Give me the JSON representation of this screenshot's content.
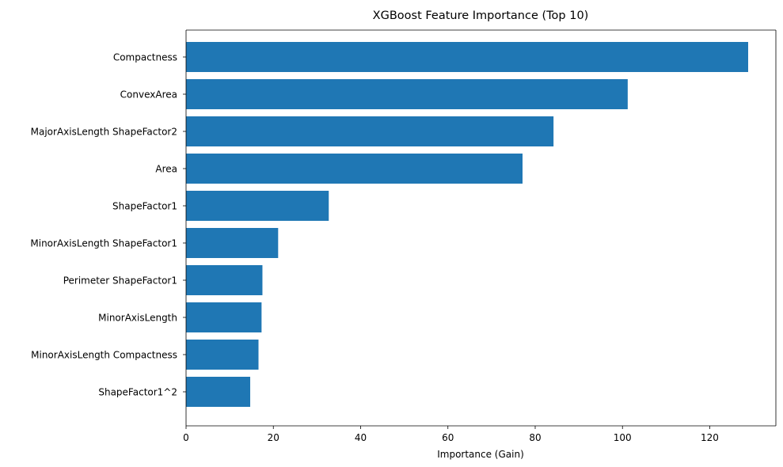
{
  "chart_data": {
    "type": "bar",
    "orientation": "horizontal",
    "title": "XGBoost Feature Importance (Top 10)",
    "xlabel": "Importance (Gain)",
    "ylabel": "",
    "xlim": [
      0,
      130
    ],
    "xticks": [
      0,
      20,
      40,
      60,
      80,
      100,
      120
    ],
    "grid": false,
    "bar_color": "#1f77b4",
    "categories": [
      "Compactness",
      "ConvexArea",
      "MajorAxisLength ShapeFactor2",
      "Area",
      "ShapeFactor1",
      "MinorAxisLength ShapeFactor1",
      "Perimeter ShapeFactor1",
      "MinorAxisLength",
      "MinorAxisLength Compactness",
      "ShapeFactor1^2"
    ],
    "values": [
      128.8,
      101.2,
      84.2,
      77.1,
      32.7,
      21.1,
      17.5,
      17.3,
      16.6,
      14.7
    ]
  }
}
